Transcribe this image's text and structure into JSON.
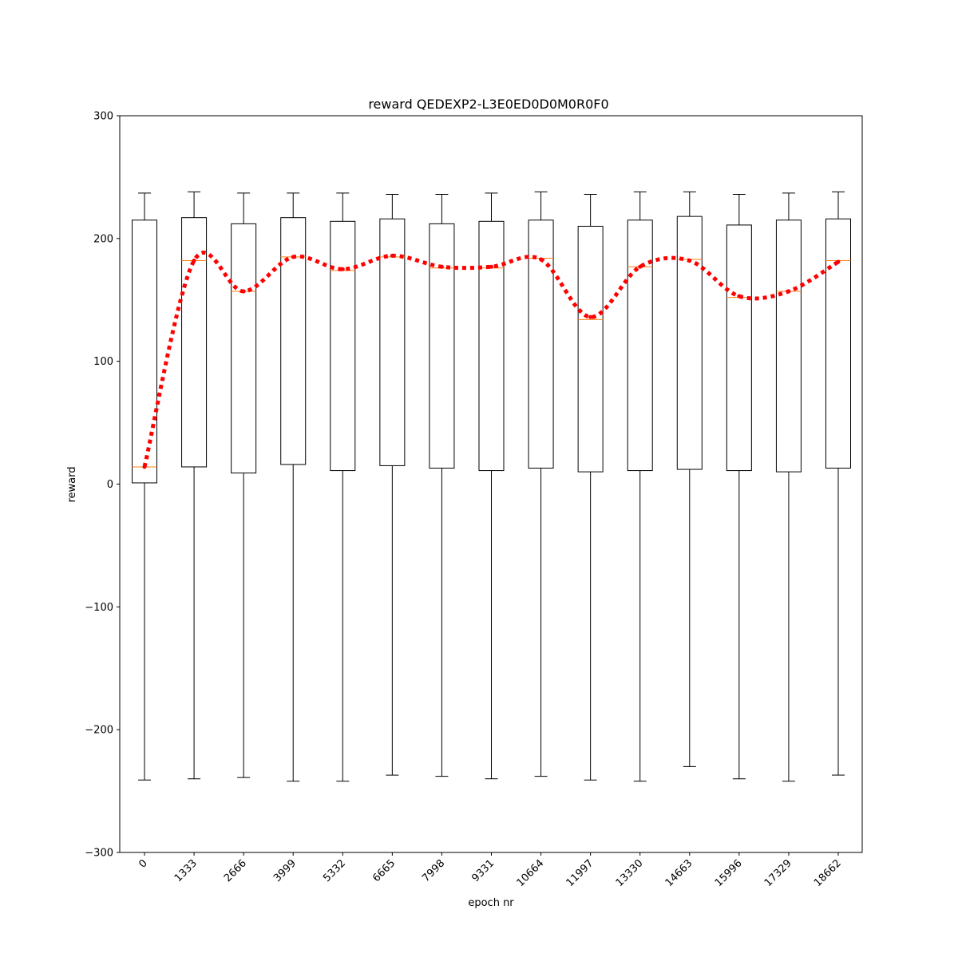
{
  "chart_data": {
    "type": "box",
    "title": "reward QEDEXP2-L3E0ED0D0M0R0F0",
    "xlabel": "epoch nr",
    "ylabel": "reward",
    "ylim": [
      -300,
      300
    ],
    "yticks": [
      -300,
      -200,
      -100,
      0,
      100,
      200,
      300
    ],
    "ytick_labels": [
      "−300",
      "−200",
      "−100",
      "0",
      "100",
      "200",
      "300"
    ],
    "categories": [
      "0",
      "1333",
      "2666",
      "3999",
      "5332",
      "6665",
      "7998",
      "9331",
      "10664",
      "11997",
      "13330",
      "14663",
      "15996",
      "17329",
      "18662"
    ],
    "boxes": [
      {
        "whisker_low": -241,
        "q1": 1,
        "median": 14,
        "q3": 215,
        "whisker_high": 237
      },
      {
        "whisker_low": -240,
        "q1": 14,
        "median": 182,
        "q3": 217,
        "whisker_high": 238
      },
      {
        "whisker_low": -239,
        "q1": 9,
        "median": 157,
        "q3": 212,
        "whisker_high": 237
      },
      {
        "whisker_low": -242,
        "q1": 16,
        "median": 185,
        "q3": 217,
        "whisker_high": 237
      },
      {
        "whisker_low": -242,
        "q1": 11,
        "median": 174,
        "q3": 214,
        "whisker_high": 237
      },
      {
        "whisker_low": -237,
        "q1": 15,
        "median": 185,
        "q3": 216,
        "whisker_high": 236
      },
      {
        "whisker_low": -238,
        "q1": 13,
        "median": 176,
        "q3": 212,
        "whisker_high": 236
      },
      {
        "whisker_low": -240,
        "q1": 11,
        "median": 176,
        "q3": 214,
        "whisker_high": 237
      },
      {
        "whisker_low": -238,
        "q1": 13,
        "median": 184,
        "q3": 215,
        "whisker_high": 238
      },
      {
        "whisker_low": -241,
        "q1": 10,
        "median": 134,
        "q3": 210,
        "whisker_high": 236
      },
      {
        "whisker_low": -242,
        "q1": 11,
        "median": 177,
        "q3": 215,
        "whisker_high": 238
      },
      {
        "whisker_low": -230,
        "q1": 12,
        "median": 183,
        "q3": 218,
        "whisker_high": 238
      },
      {
        "whisker_low": -240,
        "q1": 11,
        "median": 152,
        "q3": 211,
        "whisker_high": 236
      },
      {
        "whisker_low": -242,
        "q1": 10,
        "median": 157,
        "q3": 215,
        "whisker_high": 237
      },
      {
        "whisker_low": -237,
        "q1": 13,
        "median": 182,
        "q3": 216,
        "whisker_high": 238
      }
    ],
    "mean_series": {
      "values": [
        14,
        182,
        157,
        185,
        175,
        186,
        177,
        177,
        183,
        136,
        177,
        182,
        153,
        157,
        181
      ],
      "color": "#ff0000",
      "style": "dotted"
    },
    "median_color": "#ff7f0e",
    "box_color": "#000000",
    "grid": false
  }
}
